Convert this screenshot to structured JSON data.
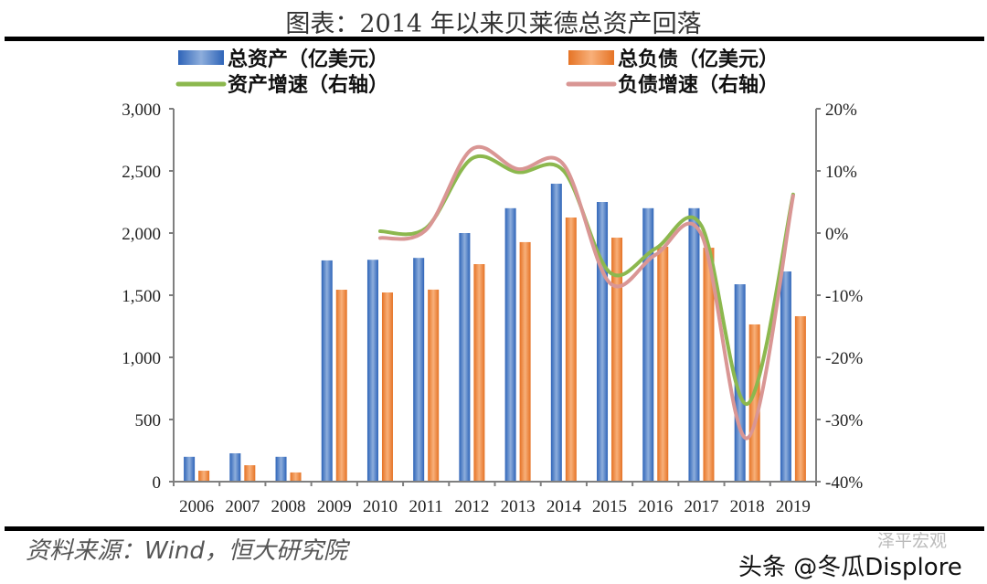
{
  "title": "图表：2014 年以来贝莱德总资产回落",
  "source": "资料来源：Wind，恒大研究院",
  "watermark": {
    "account": "泽平宏观",
    "platform": "头条 @冬瓜Displore"
  },
  "chart_data": {
    "type": "bar+line",
    "title": "图表：2014 年以来贝莱德总资产回落",
    "categories": [
      "2006",
      "2007",
      "2008",
      "2009",
      "2010",
      "2011",
      "2012",
      "2013",
      "2014",
      "2015",
      "2016",
      "2017",
      "2018",
      "2019"
    ],
    "left_axis": {
      "range": [
        0,
        3000
      ],
      "ticks": [
        0,
        500,
        1000,
        1500,
        2000,
        2500,
        3000
      ],
      "tick_labels": [
        "0",
        "500",
        "1,000",
        "1,500",
        "2,000",
        "2,500",
        "3,000"
      ]
    },
    "right_axis": {
      "range": [
        -40,
        20
      ],
      "ticks": [
        -40,
        -30,
        -20,
        -10,
        0,
        10,
        20
      ],
      "tick_labels": [
        "-40%",
        "-30%",
        "-20%",
        "-10%",
        "0%",
        "10%",
        "20%"
      ]
    },
    "grid": false,
    "legend_placement": "top",
    "series": [
      {
        "name": "总资产（亿美元）",
        "kind": "bar",
        "axis": "left",
        "color": "#4472C4",
        "values": [
          200,
          228,
          200,
          1780,
          1785,
          1800,
          2000,
          2200,
          2397,
          2250,
          2200,
          2200,
          1588,
          1691
        ]
      },
      {
        "name": "总负债（亿美元）",
        "kind": "bar",
        "axis": "left",
        "color": "#ED7D31",
        "values": [
          88,
          132,
          74,
          1544,
          1522,
          1545,
          1750,
          1927,
          2125,
          1963,
          1890,
          1882,
          1265,
          1331
        ]
      },
      {
        "name": "资产增速（右轴）",
        "kind": "line",
        "axis": "right",
        "color": "#8CB84E",
        "values": [
          null,
          null,
          null,
          null,
          0.3,
          0.8,
          12,
          9.8,
          10,
          -6.3,
          -2.5,
          1.2,
          -27.5,
          6.2
        ]
      },
      {
        "name": "负债增速（右轴）",
        "kind": "line",
        "axis": "right",
        "color": "#D99694",
        "values": [
          null,
          null,
          null,
          null,
          -0.8,
          0.5,
          13.5,
          10.3,
          11,
          -8,
          -3.5,
          -0.2,
          -33,
          6
        ]
      }
    ]
  }
}
